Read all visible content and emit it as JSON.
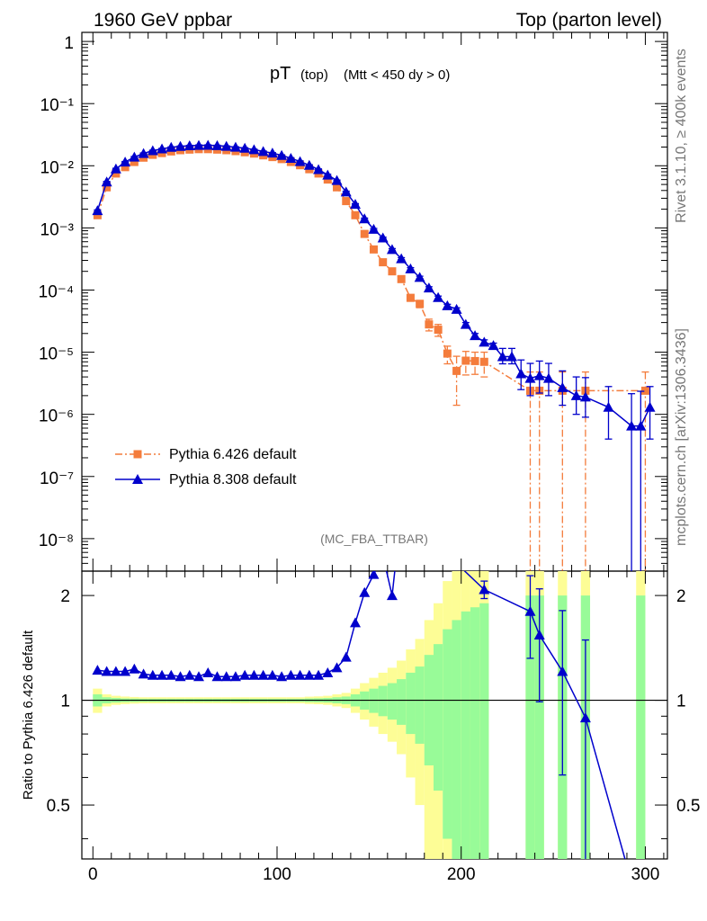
{
  "header": {
    "left": "1960 GeV ppbar",
    "right": "Top (parton level)"
  },
  "title": {
    "main": "pT",
    "sub1": "(top)",
    "sub2": "(Mtt < 450 dy > 0)"
  },
  "analysis_tag": "(MC_FBA_TTBAR)",
  "side_text": {
    "rivet": "Rivet 3.1.10, ≥ 400k events",
    "mcplots": "mcplots.cern.ch [arXiv:1306.3436]"
  },
  "ratio_ylabel": "Ratio to Pythia 6.426 default",
  "legend": [
    {
      "label": "Pythia 6.426 default",
      "color": "#f47c3c",
      "marker": "square",
      "style": "dash-dot"
    },
    {
      "label": "Pythia 8.308 default",
      "color": "#0000cc",
      "marker": "triangle",
      "style": "solid"
    }
  ],
  "main_axis": {
    "y_tick_labels": [
      "1",
      "10⁻¹",
      "10⁻²",
      "10⁻³",
      "10⁻⁴",
      "10⁻⁵",
      "10⁻⁶",
      "10⁻⁷",
      "10⁻⁸"
    ],
    "y_exponents": [
      0,
      -1,
      -2,
      -3,
      -4,
      -5,
      -6,
      -7,
      -8
    ]
  },
  "ratio_axis": {
    "y_tick_labels": [
      "2",
      "1",
      "0.5"
    ],
    "y_tick_values": [
      2,
      1,
      0.5
    ]
  },
  "x_axis": {
    "tick_labels": [
      "0",
      "100",
      "200",
      "300"
    ],
    "tick_values": [
      0,
      100,
      200,
      300
    ]
  },
  "chart_data": {
    "type": "line",
    "title": "pT (top) (Mtt < 450 dy > 0)",
    "xlabel": "",
    "ylabel": "",
    "xlim": [
      -6,
      312
    ],
    "ylim_log": [
      3e-09,
      1.4
    ],
    "ratio_ylim_log": [
      0.35,
      2.35
    ],
    "series": [
      {
        "name": "Pythia 6.426 default",
        "color": "#f47c3c",
        "x": [
          2.5,
          7.5,
          12.5,
          17.5,
          22.5,
          27.5,
          32.5,
          37.5,
          42.5,
          47.5,
          52.5,
          57.5,
          62.5,
          67.5,
          72.5,
          77.5,
          82.5,
          87.5,
          92.5,
          97.5,
          102.5,
          107.5,
          112.5,
          117.5,
          122.5,
          127.5,
          132.5,
          137.5,
          142.5,
          147.5,
          152.5,
          157.5,
          162.5,
          167.5,
          172.5,
          177.5,
          182.5,
          187.5,
          192.5,
          197.5,
          202.5,
          207.5,
          212.5,
          237.5,
          242.5,
          255,
          267.5,
          300
        ],
        "y": [
          0.0016,
          0.0045,
          0.0075,
          0.0095,
          0.0115,
          0.0135,
          0.015,
          0.016,
          0.017,
          0.0178,
          0.0182,
          0.0185,
          0.0185,
          0.0182,
          0.0178,
          0.0172,
          0.0165,
          0.0157,
          0.0147,
          0.0138,
          0.0128,
          0.0115,
          0.0102,
          0.0088,
          0.0075,
          0.006,
          0.0045,
          0.0027,
          0.0016,
          0.0008,
          0.00045,
          0.00028,
          0.0002,
          0.00015,
          7.5e-05,
          6e-05,
          2.8e-05,
          2.3e-05,
          9.5e-06,
          5e-06,
          7.3e-06,
          7.2e-06,
          7e-06,
          2.4e-06,
          2.4e-06,
          2.4e-06,
          2.4e-06,
          2.4e-06
        ],
        "err_low": [
          5e-05,
          0.0001,
          0.0002,
          0.0002,
          0.0003,
          0.0003,
          0.0003,
          0.0003,
          0.0003,
          0.0003,
          0.0003,
          0.0003,
          0.0003,
          0.0003,
          0.0003,
          0.0003,
          0.0003,
          0.0003,
          0.0003,
          0.0003,
          0.0003,
          0.0003,
          0.0003,
          0.0002,
          0.0002,
          0.0002,
          0.0001,
          0.0001,
          6e-05,
          4e-05,
          3e-05,
          2e-05,
          1.5e-05,
          1.2e-05,
          9e-06,
          8e-06,
          6e-06,
          5e-06,
          3e-06,
          3.6e-06,
          3e-06,
          2.8e-06,
          3e-06,
          2.4e-06,
          2.4e-06,
          2.4e-06,
          2.4e-06,
          2.4e-06
        ],
        "err_high": [
          5e-05,
          0.0001,
          0.0002,
          0.0002,
          0.0003,
          0.0003,
          0.0003,
          0.0003,
          0.0003,
          0.0003,
          0.0003,
          0.0003,
          0.0003,
          0.0003,
          0.0003,
          0.0003,
          0.0003,
          0.0003,
          0.0003,
          0.0003,
          0.0003,
          0.0003,
          0.0003,
          0.0002,
          0.0002,
          0.0002,
          0.0001,
          0.0001,
          6e-05,
          4e-05,
          3e-05,
          2e-05,
          1.5e-05,
          1.2e-05,
          9e-06,
          8e-06,
          6e-06,
          5e-06,
          3e-06,
          3.6e-06,
          3e-06,
          2.8e-06,
          3e-06,
          2.4e-06,
          2.4e-06,
          2.4e-06,
          2.4e-06,
          2.4e-06
        ]
      },
      {
        "name": "Pythia 8.308 default",
        "color": "#0000cc",
        "x": [
          2.5,
          7.5,
          12.5,
          17.5,
          22.5,
          27.5,
          32.5,
          37.5,
          42.5,
          47.5,
          52.5,
          57.5,
          62.5,
          67.5,
          72.5,
          77.5,
          82.5,
          87.5,
          92.5,
          97.5,
          102.5,
          107.5,
          112.5,
          117.5,
          122.5,
          127.5,
          132.5,
          137.5,
          142.5,
          147.5,
          152.5,
          157.5,
          162.5,
          167.5,
          172.5,
          177.5,
          182.5,
          187.5,
          192.5,
          197.5,
          202.5,
          207.5,
          212.5,
          217.5,
          222.5,
          227.5,
          232.5,
          237.5,
          242.5,
          247.5,
          255,
          262.5,
          267.5,
          280,
          292.5,
          297.5,
          302.5
        ],
        "y": [
          0.0019,
          0.0055,
          0.0089,
          0.0115,
          0.0138,
          0.0158,
          0.0175,
          0.0187,
          0.0198,
          0.0205,
          0.021,
          0.0213,
          0.0214,
          0.0211,
          0.0206,
          0.0199,
          0.0192,
          0.0182,
          0.017,
          0.016,
          0.0147,
          0.0132,
          0.0117,
          0.0102,
          0.0087,
          0.0071,
          0.0058,
          0.0038,
          0.0024,
          0.0014,
          0.00095,
          0.00069,
          0.00045,
          0.00032,
          0.00022,
          0.00016,
          0.000108,
          7.6e-05,
          5.6e-05,
          4.9e-05,
          2.8e-05,
          1.85e-05,
          1.45e-05,
          1.28e-05,
          8.5e-06,
          8.5e-06,
          4.5e-06,
          3.8e-06,
          4.2e-06,
          3.8e-06,
          2.7e-06,
          2e-06,
          1.9e-06,
          1.3e-06,
          6.5e-07,
          6.5e-07,
          1.3e-06
        ],
        "err_low": [
          5e-05,
          0.0001,
          0.0002,
          0.0002,
          0.0003,
          0.0003,
          0.0003,
          0.0003,
          0.0003,
          0.0003,
          0.0003,
          0.0003,
          0.0003,
          0.0003,
          0.0003,
          0.0003,
          0.0003,
          0.0003,
          0.0003,
          0.0003,
          0.0003,
          0.0003,
          0.0003,
          0.0002,
          0.0002,
          0.0002,
          0.0001,
          0.0001,
          6e-05,
          4e-05,
          3e-05,
          2e-05,
          1.5e-05,
          1.2e-05,
          9e-06,
          7e-06,
          5e-06,
          4e-06,
          3e-06,
          2.8e-06,
          2e-06,
          1.5e-06,
          1.3e-06,
          1.2e-06,
          2e-06,
          2e-06,
          2e-06,
          1.8e-06,
          2e-06,
          1.8e-06,
          1.3e-06,
          1e-06,
          1e-06,
          9e-07,
          6.5e-07,
          6.5e-07,
          9e-07
        ],
        "err_high": [
          5e-05,
          0.0001,
          0.0002,
          0.0002,
          0.0003,
          0.0003,
          0.0003,
          0.0003,
          0.0003,
          0.0003,
          0.0003,
          0.0003,
          0.0003,
          0.0003,
          0.0003,
          0.0003,
          0.0003,
          0.0003,
          0.0003,
          0.0003,
          0.0003,
          0.0003,
          0.0003,
          0.0002,
          0.0002,
          0.0002,
          0.0001,
          0.0001,
          6e-05,
          4e-05,
          3e-05,
          2e-05,
          1.5e-05,
          1.2e-05,
          9e-06,
          7e-06,
          5e-06,
          4e-06,
          3e-06,
          2.8e-06,
          2e-06,
          1.5e-06,
          1.3e-06,
          1.2e-06,
          3e-06,
          3e-06,
          3e-06,
          2.8e-06,
          3e-06,
          2.8e-06,
          2.3e-06,
          2e-06,
          2e-06,
          1.5e-06,
          1.5e-06,
          1.7e-06,
          1.5e-06
        ]
      }
    ],
    "ratio": {
      "reference": "Pythia 6.426 default",
      "series_name": "Pythia 8.308 default",
      "x": [
        2.5,
        7.5,
        12.5,
        17.5,
        22.5,
        27.5,
        32.5,
        37.5,
        42.5,
        47.5,
        52.5,
        57.5,
        62.5,
        67.5,
        72.5,
        77.5,
        82.5,
        87.5,
        92.5,
        97.5,
        102.5,
        107.5,
        112.5,
        117.5,
        122.5,
        127.5,
        132.5,
        137.5,
        142.5,
        147.5,
        152.5,
        157.5,
        162.5,
        167.5,
        212.5,
        237.5,
        242.5,
        255,
        267.5,
        292.5
      ],
      "y": [
        1.22,
        1.21,
        1.21,
        1.21,
        1.23,
        1.19,
        1.18,
        1.18,
        1.18,
        1.17,
        1.18,
        1.17,
        1.2,
        1.17,
        1.17,
        1.17,
        1.18,
        1.18,
        1.18,
        1.18,
        1.17,
        1.18,
        1.18,
        1.18,
        1.18,
        1.2,
        1.24,
        1.33,
        1.67,
        2.04,
        2.3,
        2.6,
        2.0,
        3.5,
        2.08,
        1.8,
        1.54,
        1.21,
        0.89,
        0.3
      ],
      "err": [
        0,
        0,
        0,
        0,
        0,
        0,
        0,
        0,
        0,
        0,
        0,
        0,
        0,
        0,
        0,
        0,
        0,
        0,
        0,
        0,
        0,
        0,
        0,
        0,
        0,
        0,
        0,
        0,
        0,
        0,
        0,
        0,
        0,
        0,
        0.12,
        0.48,
        0.55,
        0.6,
        0.6,
        0
      ],
      "band_edges": [
        0,
        5,
        10,
        15,
        20,
        25,
        30,
        35,
        40,
        45,
        50,
        55,
        60,
        65,
        70,
        75,
        80,
        85,
        90,
        95,
        100,
        105,
        110,
        115,
        120,
        125,
        130,
        135,
        140,
        145,
        150,
        155,
        160,
        165,
        170,
        175,
        180,
        185,
        190,
        195,
        200,
        205,
        210,
        215
      ],
      "green_half": [
        0.04,
        0.02,
        0.015,
        0.012,
        0.011,
        0.01,
        0.01,
        0.01,
        0.01,
        0.01,
        0.01,
        0.01,
        0.01,
        0.01,
        0.01,
        0.01,
        0.01,
        0.01,
        0.01,
        0.01,
        0.01,
        0.01,
        0.01,
        0.012,
        0.013,
        0.015,
        0.02,
        0.025,
        0.04,
        0.06,
        0.08,
        0.1,
        0.12,
        0.15,
        0.2,
        0.25,
        0.35,
        0.45,
        0.6,
        0.7,
        0.8,
        0.85,
        0.9
      ],
      "yellow_half": [
        0.08,
        0.04,
        0.03,
        0.025,
        0.022,
        0.02,
        0.02,
        0.02,
        0.02,
        0.02,
        0.02,
        0.02,
        0.02,
        0.02,
        0.02,
        0.02,
        0.02,
        0.02,
        0.02,
        0.02,
        0.02,
        0.02,
        0.02,
        0.024,
        0.026,
        0.03,
        0.04,
        0.05,
        0.08,
        0.12,
        0.16,
        0.2,
        0.24,
        0.3,
        0.4,
        0.5,
        0.7,
        0.9,
        1.2,
        1.5,
        1.8,
        2.0,
        2.2
      ],
      "full_bins": [
        [
          235,
          240
        ],
        [
          240,
          245
        ],
        [
          252.5,
          257.5
        ],
        [
          265,
          270
        ],
        [
          295,
          300
        ]
      ]
    }
  }
}
